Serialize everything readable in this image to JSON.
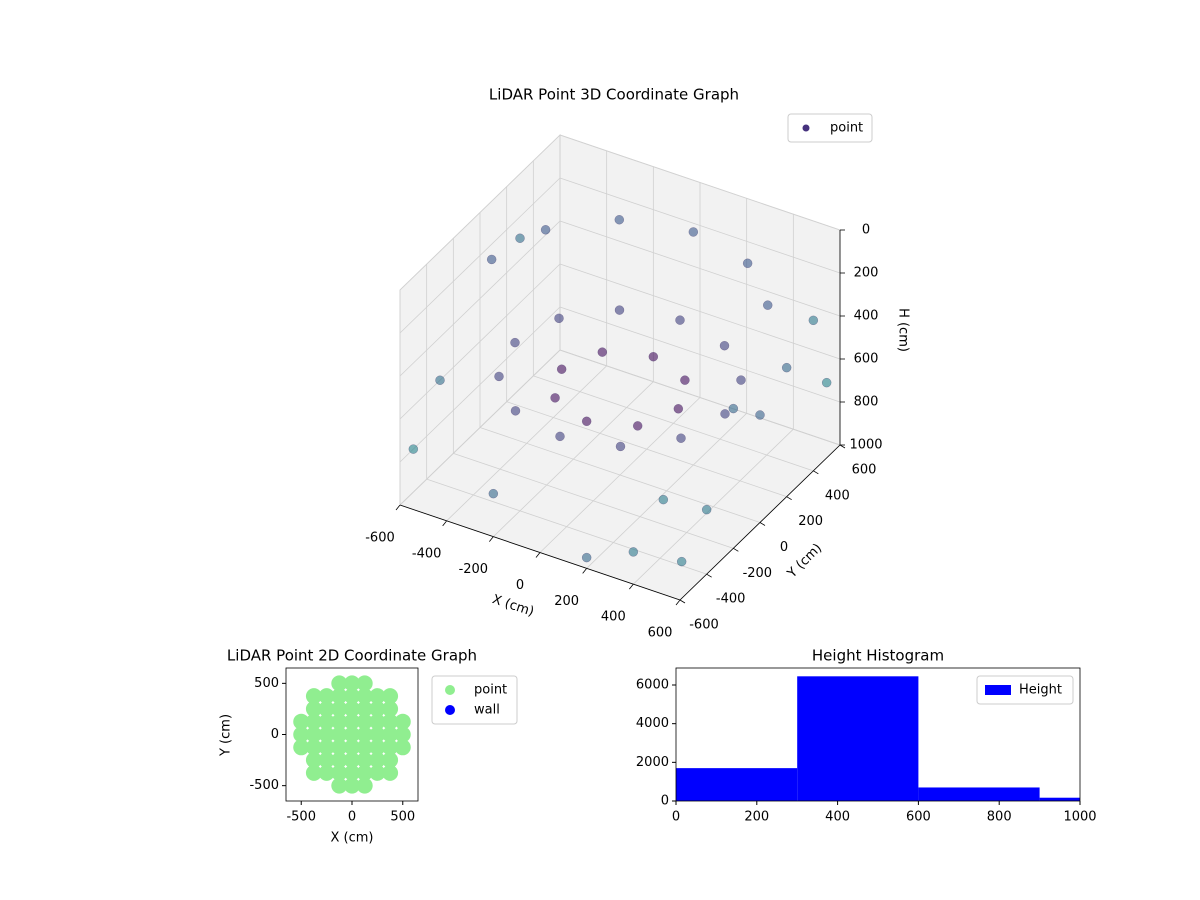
{
  "chart_data": [
    {
      "type": "scatter3d",
      "title": "LiDAR Point 3D Coordinate Graph",
      "xlabel": "X (cm)",
      "ylabel": "Y (cm)",
      "zlabel": "H (cm)",
      "xlim": [
        -600,
        600
      ],
      "ylim": [
        -600,
        600
      ],
      "zlim": [
        1000,
        0
      ],
      "xticks": [
        -600,
        -400,
        -200,
        0,
        200,
        400,
        600
      ],
      "yticks": [
        -600,
        -400,
        -200,
        0,
        200,
        400,
        600
      ],
      "zticks": [
        0,
        200,
        400,
        600,
        800,
        1000
      ],
      "grid": true,
      "legend": "upper right",
      "series": [
        {
          "name": "point",
          "color": "#46327e",
          "x": [
            450,
            390,
            225,
            0,
            -225,
            -390,
            -450,
            -390,
            -225,
            0,
            225,
            390,
            250,
            177,
            0,
            -177,
            -250,
            -177,
            0,
            177,
            476,
            275,
            0,
            -275,
            -476,
            -550,
            600,
            600,
            600,
            600,
            600,
            550,
            -600,
            -600,
            -600,
            400,
            200,
            -200,
            600,
            500
          ],
          "y": [
            0,
            225,
            390,
            450,
            390,
            225,
            0,
            -225,
            -390,
            -450,
            -390,
            -225,
            0,
            177,
            250,
            177,
            0,
            -177,
            -250,
            -177,
            275,
            476,
            550,
            476,
            275,
            0,
            400,
            200,
            0,
            -200,
            -400,
            -500,
            300,
            -300,
            -500,
            -600,
            -600,
            -600,
            500,
            -550
          ],
          "z": [
            550,
            550,
            550,
            550,
            550,
            550,
            550,
            550,
            550,
            550,
            550,
            550,
            600,
            600,
            600,
            600,
            600,
            600,
            600,
            600,
            200,
            200,
            200,
            200,
            200,
            200,
            300,
            400,
            500,
            350,
            700,
            900,
            300,
            600,
            800,
            850,
            950,
            800,
            650,
            600
          ]
        }
      ]
    },
    {
      "type": "scatter",
      "title": "LiDAR Point 2D Coordinate Graph",
      "xlabel": "X (cm)",
      "ylabel": "Y (cm)",
      "xlim": [
        -650,
        650
      ],
      "ylim": [
        -650,
        650
      ],
      "xticks": [
        -500,
        0,
        500
      ],
      "yticks": [
        -500,
        0,
        500
      ],
      "legend": "outside right",
      "series": [
        {
          "name": "point",
          "color": "#90ee90",
          "x": [
            -125,
            0,
            125,
            -375,
            -250,
            -125,
            0,
            125,
            250,
            375,
            -375,
            -250,
            -125,
            0,
            125,
            250,
            375,
            -500,
            -375,
            -250,
            -125,
            0,
            125,
            250,
            375,
            500,
            -500,
            -375,
            -250,
            -125,
            0,
            125,
            250,
            375,
            500,
            -500,
            -375,
            -250,
            -125,
            0,
            125,
            250,
            375,
            500,
            -375,
            -250,
            -125,
            0,
            125,
            250,
            375,
            -375,
            -250,
            -125,
            0,
            125,
            250,
            375,
            -125,
            0,
            125
          ],
          "y": [
            -500,
            -500,
            -500,
            -375,
            -375,
            -375,
            -375,
            -375,
            -375,
            -375,
            -250,
            -250,
            -250,
            -250,
            -250,
            -250,
            -250,
            -125,
            -125,
            -125,
            -125,
            -125,
            -125,
            -125,
            -125,
            -125,
            0,
            0,
            0,
            0,
            0,
            0,
            0,
            0,
            0,
            125,
            125,
            125,
            125,
            125,
            125,
            125,
            125,
            125,
            250,
            250,
            250,
            250,
            250,
            250,
            250,
            375,
            375,
            375,
            375,
            375,
            375,
            375,
            500,
            500,
            500
          ]
        },
        {
          "name": "wall",
          "color": "#0000ff",
          "x": [],
          "y": []
        }
      ]
    },
    {
      "type": "histogram",
      "title": "Height Histogram",
      "xlim": [
        0,
        1000
      ],
      "ylim": [
        0,
        6880
      ],
      "xticks": [
        0,
        200,
        400,
        600,
        800,
        1000
      ],
      "yticks": [
        0,
        2000,
        4000,
        6000
      ],
      "bins": [
        0,
        300,
        600,
        900,
        1000
      ],
      "legend": "upper right",
      "series": [
        {
          "name": "Height",
          "color": "#0000ff",
          "values": [
            1700,
            6450,
            700,
            170
          ]
        }
      ]
    }
  ]
}
